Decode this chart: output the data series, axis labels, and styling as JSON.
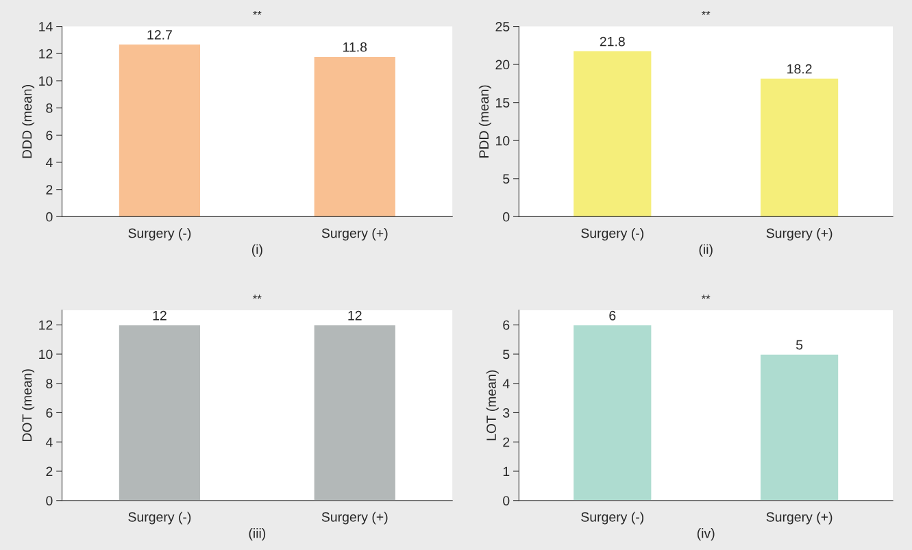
{
  "chart_data": [
    {
      "type": "bar",
      "title": "**",
      "xlabel": "(i)",
      "ylabel": "DDD (mean)",
      "categories": [
        "Surgery (-)",
        "Surgery (+)"
      ],
      "values": [
        12.7,
        11.8
      ],
      "color": "#f9c092",
      "ylim": [
        0,
        14
      ],
      "yticks": [
        0,
        2,
        4,
        6,
        8,
        10,
        12,
        14
      ],
      "data_labels": true,
      "grid": false,
      "legend": false
    },
    {
      "type": "bar",
      "title": "**",
      "xlabel": "(ii)",
      "ylabel": "PDD (mean)",
      "categories": [
        "Surgery (-)",
        "Surgery (+)"
      ],
      "values": [
        21.8,
        18.2
      ],
      "color": "#f5ee7a",
      "ylim": [
        0,
        25
      ],
      "yticks": [
        0,
        5,
        10,
        15,
        20,
        25
      ],
      "data_labels": true,
      "grid": false,
      "legend": false
    },
    {
      "type": "bar",
      "title": "**",
      "xlabel": "(iii)",
      "ylabel": "DOT (mean)",
      "categories": [
        "Surgery (-)",
        "Surgery (+)"
      ],
      "values": [
        12,
        12
      ],
      "color": "#b3b8b8",
      "ylim": [
        0,
        13
      ],
      "yticks": [
        0,
        2,
        4,
        6,
        8,
        10,
        12
      ],
      "data_labels": true,
      "grid": false,
      "legend": false
    },
    {
      "type": "bar",
      "title": "**",
      "xlabel": "(iv)",
      "ylabel": "LOT (mean)",
      "categories": [
        "Surgery (-)",
        "Surgery (+)"
      ],
      "values": [
        6,
        5
      ],
      "color": "#aedcd0",
      "ylim": [
        0,
        6.5
      ],
      "yticks": [
        0,
        1,
        2,
        3,
        4,
        5,
        6
      ],
      "data_labels": true,
      "grid": false,
      "legend": false
    }
  ]
}
